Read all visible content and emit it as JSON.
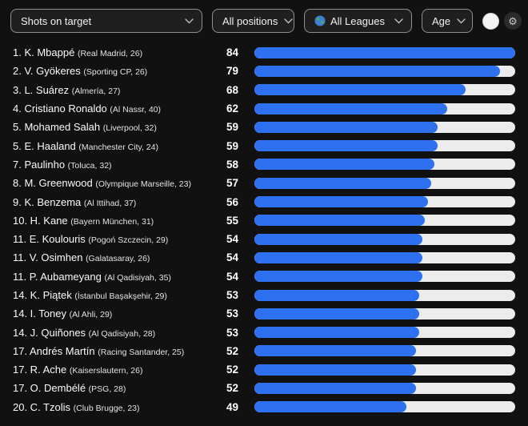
{
  "toolbar": {
    "stat_filter": "Shots on target",
    "position_filter": "All positions",
    "league_filter": "All Leagues",
    "age_filter": "Age"
  },
  "colors": {
    "background": "#111111",
    "bar_fill": "#2d71f0",
    "bar_track": "#ececec",
    "text": "#f2f2f2",
    "dropdown_bg": "#1f1f1f",
    "dropdown_border": "#8f8f8f"
  },
  "leaderboard": {
    "max_value": 84,
    "rows": [
      {
        "rank": "1",
        "name": "K. Mbappé",
        "club": "Real Madrid",
        "age": "26",
        "value": 84
      },
      {
        "rank": "2",
        "name": "V. Gyökeres",
        "club": "Sporting CP",
        "age": "26",
        "value": 79
      },
      {
        "rank": "3",
        "name": "L. Suárez",
        "club": "Almería",
        "age": "27",
        "value": 68
      },
      {
        "rank": "4",
        "name": "Cristiano Ronaldo",
        "club": "Al Nassr",
        "age": "40",
        "value": 62
      },
      {
        "rank": "5",
        "name": "Mohamed Salah",
        "club": "Liverpool",
        "age": "32",
        "value": 59
      },
      {
        "rank": "5",
        "name": "E. Haaland",
        "club": "Manchester City",
        "age": "24",
        "value": 59
      },
      {
        "rank": "7",
        "name": "Paulinho",
        "club": "Toluca",
        "age": "32",
        "value": 58
      },
      {
        "rank": "8",
        "name": "M. Greenwood",
        "club": "Olympique Marseille",
        "age": "23",
        "value": 57
      },
      {
        "rank": "9",
        "name": "K. Benzema",
        "club": "Al Ittihad",
        "age": "37",
        "value": 56
      },
      {
        "rank": "10",
        "name": "H. Kane",
        "club": "Bayern München",
        "age": "31",
        "value": 55
      },
      {
        "rank": "11",
        "name": "E. Koulouris",
        "club": "Pogoń Szczecin",
        "age": "29",
        "value": 54
      },
      {
        "rank": "11",
        "name": "V. Osimhen",
        "club": "Galatasaray",
        "age": "26",
        "value": 54
      },
      {
        "rank": "11",
        "name": "P. Aubameyang",
        "club": "Al Qadisiyah",
        "age": "35",
        "value": 54
      },
      {
        "rank": "14",
        "name": "K. Piątek",
        "club": "İstanbul Başakşehir",
        "age": "29",
        "value": 53
      },
      {
        "rank": "14",
        "name": "I. Toney",
        "club": "Al Ahli",
        "age": "29",
        "value": 53
      },
      {
        "rank": "14",
        "name": "J. Quiñones",
        "club": "Al Qadisiyah",
        "age": "28",
        "value": 53
      },
      {
        "rank": "17",
        "name": "Andrés Martín",
        "club": "Racing Santander",
        "age": "25",
        "value": 52
      },
      {
        "rank": "17",
        "name": "R. Ache",
        "club": "Kaiserslautern",
        "age": "26",
        "value": 52
      },
      {
        "rank": "17",
        "name": "O. Dembélé",
        "club": "PSG",
        "age": "28",
        "value": 52
      },
      {
        "rank": "20",
        "name": "C. Tzolis",
        "club": "Club Brugge",
        "age": "23",
        "value": 49
      }
    ]
  },
  "chart_data": {
    "type": "bar",
    "orientation": "horizontal",
    "title": "Shots on target",
    "categories": [
      "K. Mbappé",
      "V. Gyökeres",
      "L. Suárez",
      "Cristiano Ronaldo",
      "Mohamed Salah",
      "E. Haaland",
      "Paulinho",
      "M. Greenwood",
      "K. Benzema",
      "H. Kane",
      "E. Koulouris",
      "V. Osimhen",
      "P. Aubameyang",
      "K. Piątek",
      "I. Toney",
      "J. Quiñones",
      "Andrés Martín",
      "R. Ache",
      "O. Dembélé",
      "C. Tzolis"
    ],
    "values": [
      84,
      79,
      68,
      62,
      59,
      59,
      58,
      57,
      56,
      55,
      54,
      54,
      54,
      53,
      53,
      53,
      52,
      52,
      52,
      49
    ],
    "xlim": [
      0,
      84
    ],
    "legend": false,
    "grid": false
  }
}
